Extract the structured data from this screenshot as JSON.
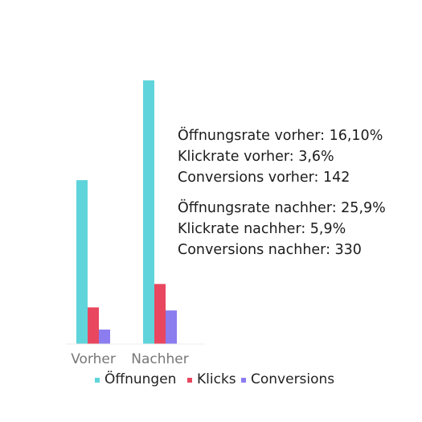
{
  "chart_data": {
    "type": "bar",
    "categories": [
      "Vorher",
      "Nachher"
    ],
    "series": [
      {
        "name": "Öffnungen",
        "color": "#5fd4db",
        "values": [
          16.1,
          25.9
        ]
      },
      {
        "name": "Klicks",
        "color": "#e8475f",
        "values": [
          3.6,
          5.9
        ]
      },
      {
        "name": "Conversions",
        "color": "#8b7cf0",
        "values": [
          1.42,
          3.3
        ]
      }
    ],
    "title": "",
    "xlabel": "",
    "ylabel": "",
    "ylim": [
      0,
      27
    ],
    "grid": false,
    "legend": "bottom",
    "annotations": [
      [
        "Öffnungsrate vorher: 16,10%",
        "Klickrate vorher: 3,6%",
        "Conversions vorher: 142"
      ],
      [
        "Öffnungsrate nachher: 25,9%",
        "Klickrate nachher: 5,9%",
        "Conversions nachher: 330"
      ]
    ]
  }
}
